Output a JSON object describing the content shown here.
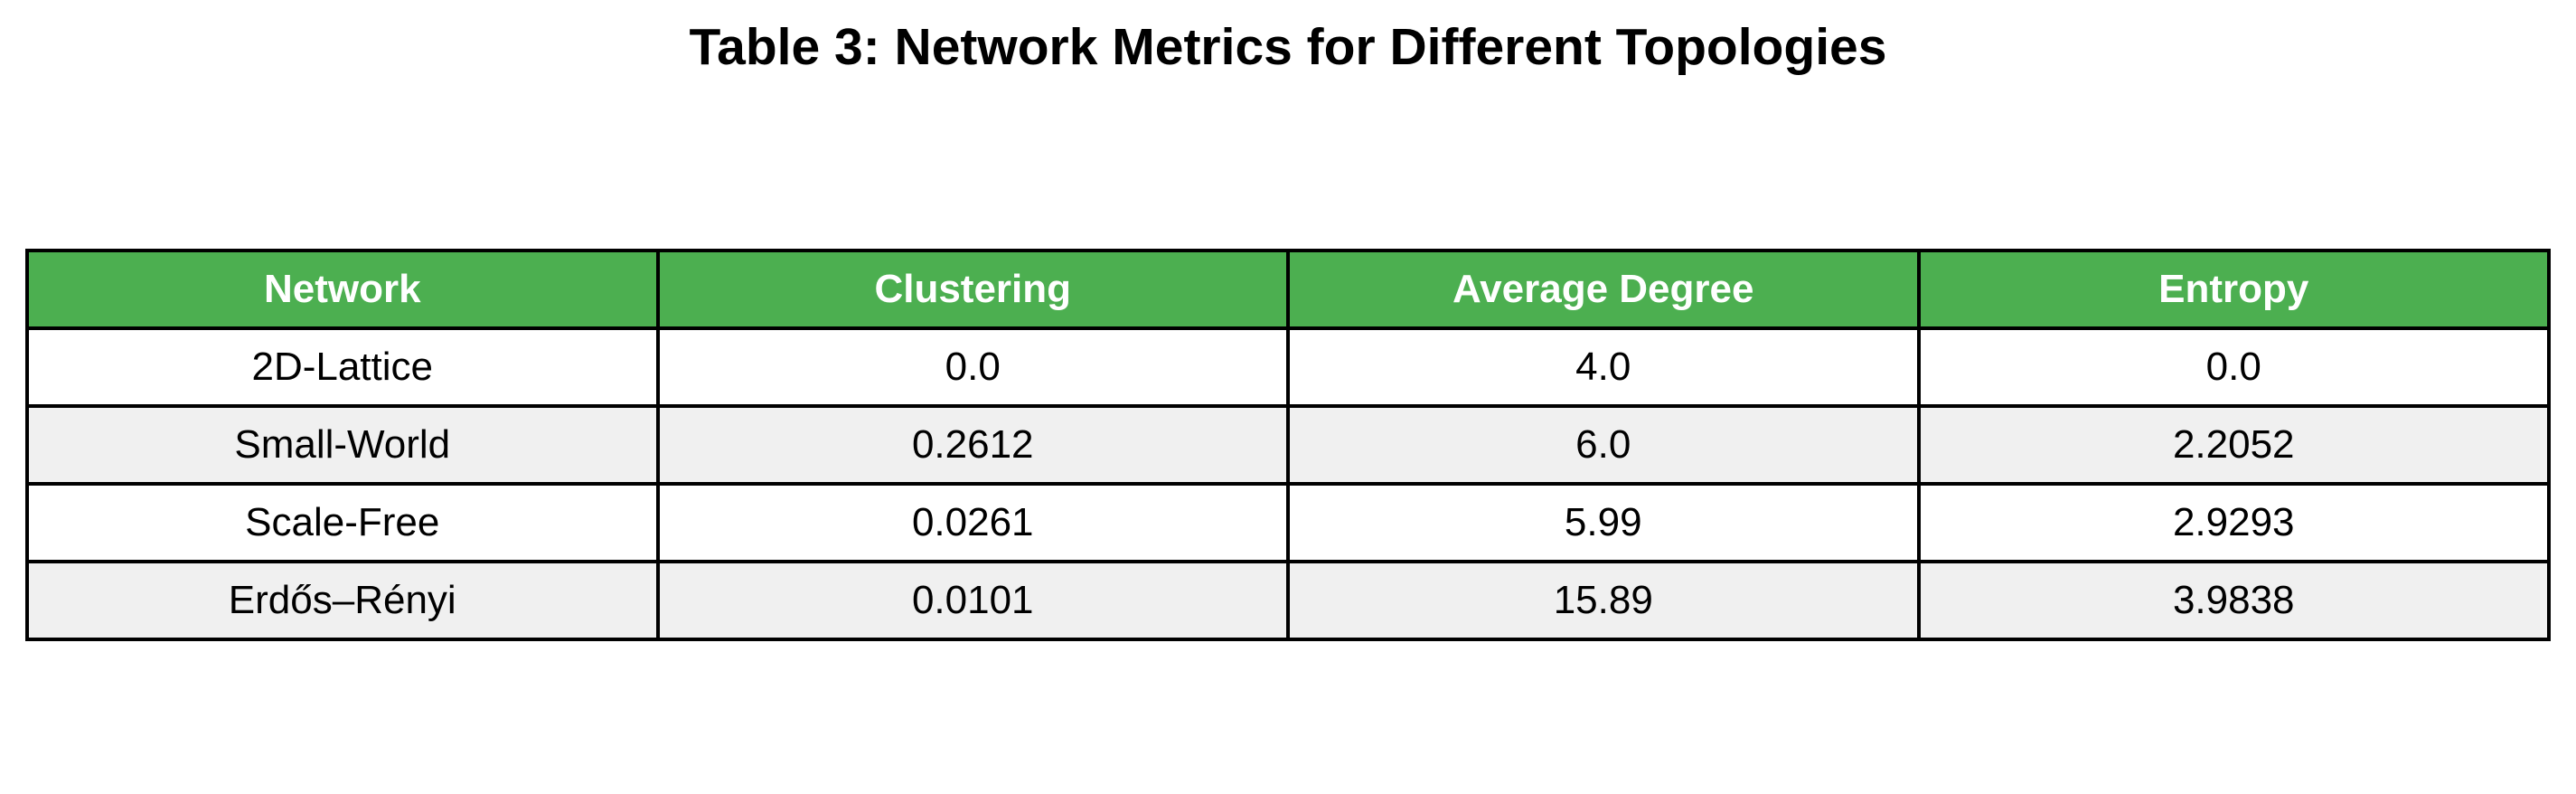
{
  "title": "Table 3: Network Metrics for Different Topologies",
  "colors": {
    "header_background": "#4caf50",
    "header_text": "#ffffff",
    "row_alt_background": "#f0f0f0",
    "row_background": "#ffffff",
    "border": "#000000"
  },
  "chart_data": {
    "type": "table",
    "title": "Table 3: Network Metrics for Different Topologies",
    "columns": [
      "Network",
      "Clustering",
      "Average Degree",
      "Entropy"
    ],
    "rows": [
      [
        "2D-Lattice",
        "0.0",
        "4.0",
        "0.0"
      ],
      [
        "Small-World",
        "0.2612",
        "6.0",
        "2.2052"
      ],
      [
        "Scale-Free",
        "0.0261",
        "5.99",
        "2.9293"
      ],
      [
        "Erdős–Rényi",
        "0.0101",
        "15.89",
        "3.9838"
      ]
    ]
  }
}
